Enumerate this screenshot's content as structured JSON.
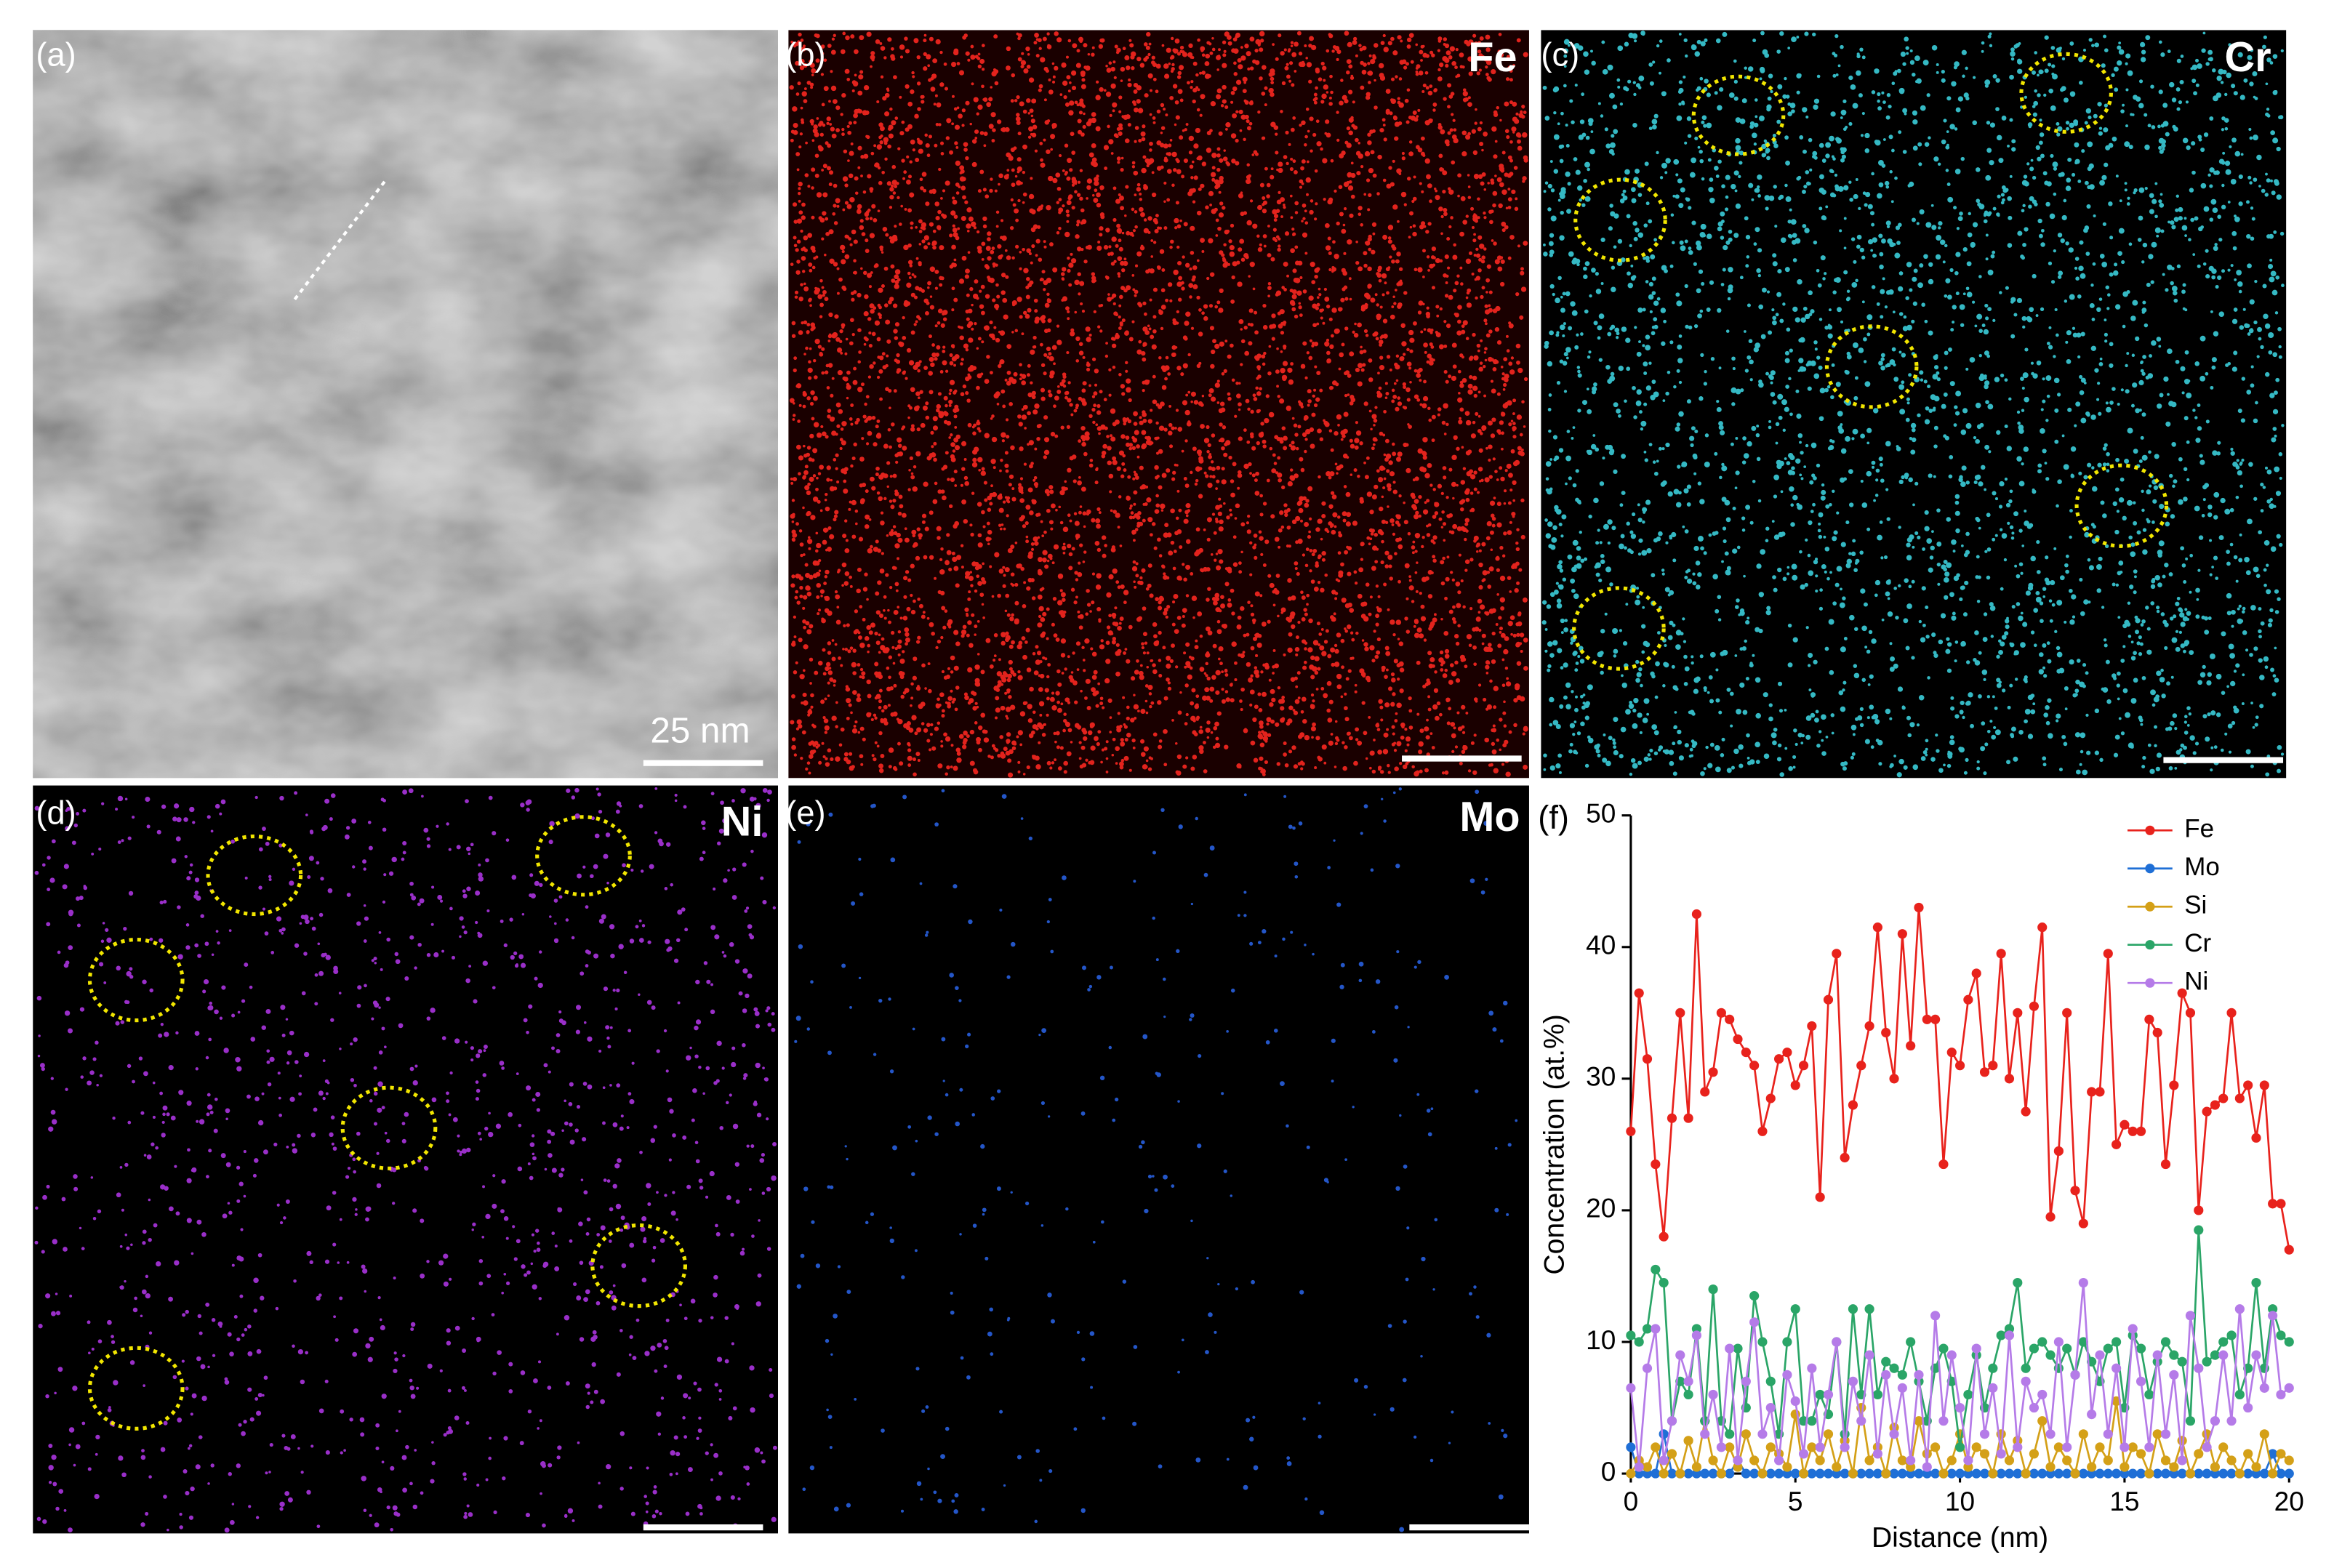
{
  "panels": [
    {
      "label": "(a)",
      "scale": "25 nm"
    },
    {
      "label": "(b)",
      "element": "Fe"
    },
    {
      "label": "(c)",
      "element": "Cr"
    },
    {
      "label": "(d)",
      "element": "Ni"
    },
    {
      "label": "(e)",
      "element": "Mo"
    },
    {
      "label": "(f)"
    }
  ],
  "chart_data": {
    "type": "line",
    "xlabel": "Distance (nm)",
    "ylabel": "Concentration (at.%)",
    "x": [
      0,
      0.25,
      0.5,
      0.75,
      1,
      1.25,
      1.5,
      1.75,
      2,
      2.25,
      2.5,
      2.75,
      3,
      3.25,
      3.5,
      3.75,
      4,
      4.25,
      4.5,
      4.75,
      5,
      5.25,
      5.5,
      5.75,
      6,
      6.25,
      6.5,
      6.75,
      7,
      7.25,
      7.5,
      7.75,
      8,
      8.25,
      8.5,
      8.75,
      9,
      9.25,
      9.5,
      9.75,
      10,
      10.25,
      10.5,
      10.75,
      11,
      11.25,
      11.5,
      11.75,
      12,
      12.25,
      12.5,
      12.75,
      13,
      13.25,
      13.5,
      13.75,
      14,
      14.25,
      14.5,
      14.75,
      15,
      15.25,
      15.5,
      15.75,
      16,
      16.25,
      16.5,
      16.75,
      17,
      17.25,
      17.5,
      17.75,
      18,
      18.25,
      18.5,
      18.75,
      19,
      19.25,
      19.5,
      19.75,
      20
    ],
    "xlim": [
      0,
      20
    ],
    "xticks": [
      0,
      5,
      10,
      15,
      20
    ],
    "ylim": [
      0,
      50
    ],
    "yticks": [
      0,
      10,
      20,
      30,
      40,
      50
    ],
    "legend": "top-right",
    "series": [
      {
        "name": "Fe",
        "color": "#e8221c",
        "values": [
          26,
          36.5,
          31.5,
          23.5,
          18,
          27,
          35,
          27,
          42.5,
          29,
          30.5,
          35,
          34.5,
          33,
          32,
          31,
          26,
          28.5,
          31.5,
          32,
          29.5,
          31,
          34,
          21,
          36,
          39.5,
          24,
          28,
          31,
          34,
          41.5,
          33.5,
          30,
          41,
          32.5,
          43,
          34.5,
          34.5,
          23.5,
          32,
          31,
          36,
          38,
          30.5,
          31,
          39.5,
          30,
          35,
          27.5,
          35.5,
          41.5,
          19.5,
          24.5,
          35,
          21.5,
          19,
          29,
          29,
          39.5,
          25,
          26.5,
          26,
          26,
          34.5,
          33.5,
          23.5,
          29.5,
          36.5,
          35,
          20,
          27.5,
          28,
          28.5,
          35,
          28.5,
          29.5,
          25.5,
          29.5,
          20.5,
          20.5,
          17
        ]
      },
      {
        "name": "Mo",
        "color": "#1f6fd6",
        "values": [
          2,
          0,
          0,
          0,
          3,
          0,
          0,
          0,
          0,
          0,
          0,
          0,
          0,
          1,
          0,
          0,
          0,
          0,
          0,
          0,
          0,
          0,
          0,
          0,
          0,
          0,
          0,
          0,
          0,
          0,
          0,
          0,
          0,
          0,
          0,
          0,
          0,
          0,
          0,
          0,
          0,
          0,
          0,
          0,
          0,
          0,
          0,
          0,
          0,
          0,
          0,
          0,
          0,
          0,
          0,
          0,
          0,
          0,
          0,
          0,
          0,
          0,
          0,
          0,
          0,
          0,
          0,
          0,
          0,
          0,
          0,
          0,
          0,
          0,
          0,
          0,
          0,
          0,
          1.5,
          0,
          0
        ]
      },
      {
        "name": "Si",
        "color": "#d4a017",
        "values": [
          0,
          1,
          0.5,
          2,
          0,
          1.5,
          0,
          2.5,
          0.5,
          4,
          1,
          0,
          2,
          0.5,
          3,
          1,
          0,
          2,
          1.5,
          0.5,
          4.5,
          0,
          2,
          1,
          3,
          0.5,
          2.5,
          0,
          5,
          1,
          2,
          0,
          3.5,
          1,
          0.5,
          4,
          1.5,
          2,
          0,
          1,
          3,
          0.5,
          2,
          1.5,
          0,
          3,
          1,
          2.5,
          0,
          1.5,
          4,
          0.5,
          2,
          1,
          0,
          3,
          0.5,
          2,
          1,
          5.5,
          0.5,
          2,
          1.5,
          0,
          3,
          1,
          0.5,
          2.5,
          0,
          1.5,
          3,
          0.5,
          2,
          1,
          0,
          1.5,
          0.5,
          3,
          0,
          1.5,
          1
        ]
      },
      {
        "name": "Cr",
        "color": "#2aa567",
        "values": [
          10.5,
          10,
          11,
          15.5,
          14.5,
          4,
          7,
          6,
          11,
          4,
          14,
          4,
          3,
          9.5,
          5,
          13.5,
          10,
          7,
          3,
          10,
          12.5,
          4,
          4,
          6,
          4.5,
          10,
          3,
          12.5,
          6,
          12.5,
          6,
          8.5,
          8,
          7.5,
          10,
          7,
          4,
          8,
          9.5,
          7,
          2,
          6,
          9,
          5,
          8,
          10.5,
          11,
          14.5,
          8,
          9.5,
          10,
          9,
          8,
          9.5,
          7.5,
          10,
          8.5,
          7,
          9.5,
          10,
          5,
          10.5,
          9.5,
          6,
          8.5,
          10,
          9,
          8.5,
          4,
          18.5,
          8.5,
          9,
          10,
          10.5,
          6,
          8,
          14.5,
          8,
          12.5,
          10.5,
          10
        ]
      },
      {
        "name": "Ni",
        "color": "#b57be8",
        "values": [
          6.5,
          0.5,
          8,
          11,
          1,
          4,
          9,
          7,
          10.5,
          3,
          6,
          2,
          9.5,
          1,
          7,
          11.5,
          3,
          5,
          1,
          7.5,
          5.5,
          1.5,
          8,
          2,
          6,
          10,
          2,
          7,
          4,
          9,
          1.5,
          7.5,
          3,
          6.5,
          1,
          7.5,
          0.5,
          12,
          4,
          9,
          5,
          1,
          9.5,
          3,
          6.5,
          1.5,
          10.5,
          2,
          7,
          5,
          6,
          3,
          10,
          2,
          7.5,
          14.5,
          4.5,
          9,
          3,
          8,
          2,
          11,
          7,
          2,
          9,
          3,
          7.5,
          1,
          12,
          8,
          2,
          4,
          9,
          4,
          12.5,
          5,
          9,
          6.5,
          12,
          6,
          6.5
        ]
      }
    ]
  }
}
